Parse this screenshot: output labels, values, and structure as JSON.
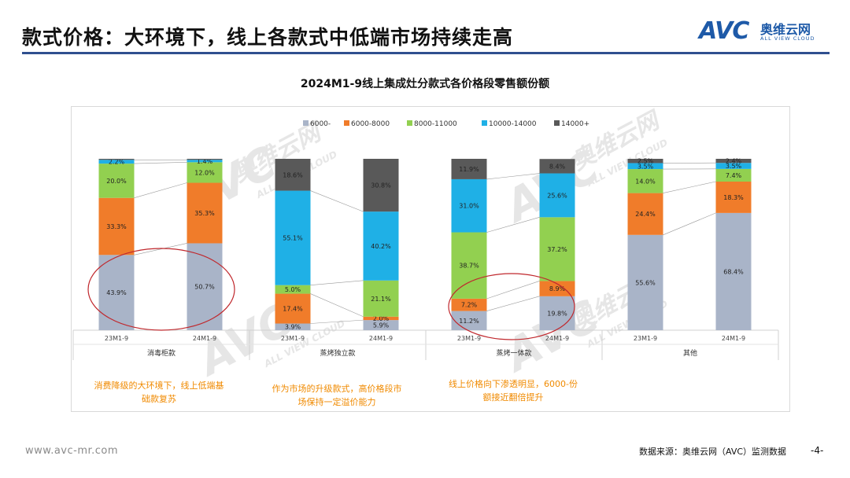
{
  "slide_title": "款式价格：大环境下，线上各款式中低端市场持续走高",
  "logo": {
    "brand": "AVC",
    "name_cn": "奥维云网",
    "name_en": "ALL VIEW CLOUD"
  },
  "watermark": {
    "brand": "AVC",
    "name_cn": "奥维云网",
    "name_en": "ALL VIEW CLOUD"
  },
  "colors": {
    "accent": "#2f4f8f",
    "note": "#f08a00",
    "circle": "#c0282d"
  },
  "chart_data": {
    "type": "bar",
    "stacked": true,
    "percent": true,
    "title": "2024M1-9线上集成灶分款式各价格段零售额份额",
    "groups": [
      "消毒柜款",
      "蒸烤独立款",
      "蒸烤一体款",
      "其他"
    ],
    "periods": [
      "23M1-9",
      "24M1-9"
    ],
    "legend_position": "top",
    "series": [
      {
        "name": "6000-",
        "color": "#a9b4c8"
      },
      {
        "name": "6000-8000",
        "color": "#f07c2a"
      },
      {
        "name": "8000-11000",
        "color": "#92d050"
      },
      {
        "name": "10000-14000",
        "color": "#1fb0e6"
      },
      {
        "name": "14000+",
        "color": "#595959"
      }
    ],
    "bars": [
      {
        "group": "消毒柜款",
        "period": "23M1-9",
        "values": [
          43.9,
          33.3,
          20.0,
          2.2,
          0.6
        ],
        "labels": [
          "43.9%",
          "33.3%",
          "20.0%",
          "2.2%",
          ""
        ]
      },
      {
        "group": "消毒柜款",
        "period": "24M1-9",
        "values": [
          50.7,
          35.3,
          12.0,
          1.4,
          0.6
        ],
        "labels": [
          "50.7%",
          "35.3%",
          "12.0%",
          "1.4%",
          ""
        ]
      },
      {
        "group": "蒸烤独立款",
        "period": "23M1-9",
        "values": [
          3.9,
          17.4,
          5.0,
          55.1,
          18.6
        ],
        "labels": [
          "3.9%",
          "17.4%",
          "5.0%",
          "55.1%",
          "18.6%"
        ]
      },
      {
        "group": "蒸烤独立款",
        "period": "24M1-9",
        "values": [
          5.9,
          2.0,
          21.1,
          40.2,
          30.8
        ],
        "labels": [
          "5.9%",
          "2.0%",
          "21.1%",
          "40.2%",
          "30.8%"
        ]
      },
      {
        "group": "蒸烤一体款",
        "period": "23M1-9",
        "values": [
          11.2,
          7.2,
          38.7,
          31.0,
          11.9
        ],
        "labels": [
          "11.2%",
          "7.2%",
          "38.7%",
          "31.0%",
          "11.9%"
        ]
      },
      {
        "group": "蒸烤一体款",
        "period": "24M1-9",
        "values": [
          19.8,
          8.9,
          37.2,
          25.6,
          8.4
        ],
        "labels": [
          "19.8%",
          "8.9%",
          "37.2%",
          "25.6%",
          "8.4%"
        ]
      },
      {
        "group": "其他",
        "period": "23M1-9",
        "values": [
          55.6,
          24.4,
          14.0,
          3.5,
          2.5
        ],
        "labels": [
          "55.6%",
          "24.4%",
          "14.0%",
          "3.5%",
          "2.5%"
        ]
      },
      {
        "group": "其他",
        "period": "24M1-9",
        "values": [
          68.4,
          18.3,
          7.4,
          3.5,
          2.4
        ],
        "labels": [
          "68.4%",
          "18.3%",
          "7.4%",
          "3.5%",
          "2.4%"
        ]
      }
    ]
  },
  "notes": [
    "消费降级的大环境下，线上低端基础款复苏",
    "作为市场的升级款式，高价格段市场保持一定溢价能力",
    "线上价格向下渗透明显，6000-份额接近翻倍提升"
  ],
  "footer": {
    "url": "www.avc-mr.com",
    "source": "数据来源：奥维云网（AVC）监测数据",
    "page": "-4-"
  }
}
